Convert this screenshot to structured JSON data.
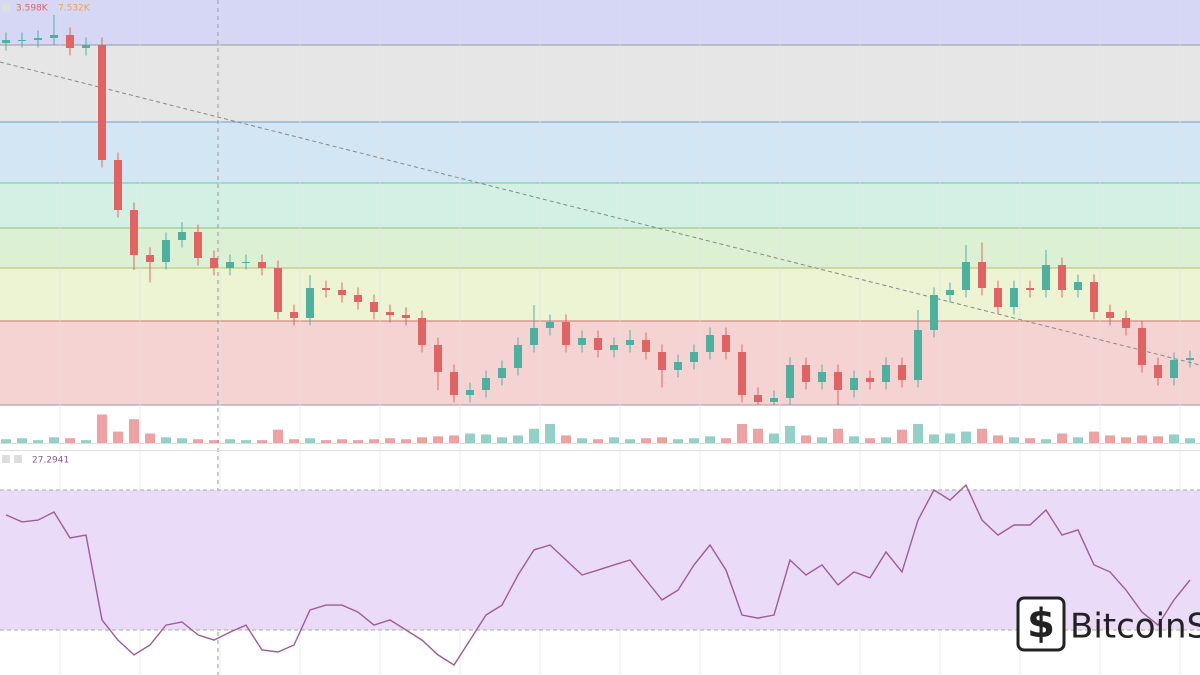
{
  "chart_data": {
    "type": "candlestick",
    "header_values": [
      "3.598K",
      "7.532K"
    ],
    "rsi_header": "27.2941",
    "watermark": "BitcoinS",
    "up_color": "#4fb0a0",
    "down_color": "#e06464",
    "ylim": [
      0,
      81
    ],
    "levels": [
      81,
      72,
      56.6,
      44.4,
      35.4,
      27.4,
      16.8,
      0
    ],
    "band_colors": [
      "#d6d6f5",
      "#e6e6e6",
      "#d3e6f3",
      "#d3f0e4",
      "#dcf0d4",
      "#ecf4d4",
      "#f5d3d3"
    ],
    "level_colors": [
      "#8f8fd6",
      "#9a9a9a",
      "#6d9fc9",
      "#6cc2a8",
      "#8fbf7a",
      "#b0bf6a",
      "#d96b6b",
      "#9a9a9a"
    ],
    "trendline": [
      68.6,
      8
    ],
    "open": [
      72.4,
      73,
      73,
      73.4,
      74,
      71.4,
      72,
      49,
      39,
      30,
      28.6,
      33,
      34.6,
      29.4,
      27.4,
      28.6,
      28.6,
      27.4,
      18.6,
      17.4,
      23.4,
      23,
      22,
      20.6,
      18.6,
      18,
      17.4,
      12,
      6.6,
      2,
      3,
      5.4,
      7.4,
      12,
      15.4,
      16.6,
      12,
      13.4,
      11,
      12,
      13,
      10.6,
      7,
      8.6,
      10.6,
      14,
      10.6,
      2,
      0.6,
      1.4,
      8,
      4.6,
      6.6,
      3,
      5.4,
      4.6,
      8,
      5,
      15,
      22,
      23,
      28.6,
      23.4,
      19.6,
      23.4,
      23,
      28,
      23,
      24.6,
      18.6,
      17.4,
      15.4,
      8,
      5.4,
      9
    ],
    "high": [
      74.5,
      74.5,
      74.9,
      78,
      75.5,
      73.5,
      73.5,
      50.5,
      40.5,
      31.5,
      34.5,
      36.6,
      36.1,
      30.9,
      30.1,
      30.1,
      30.1,
      28.9,
      20.1,
      26,
      24.9,
      24.5,
      23.5,
      22.1,
      20.1,
      19.5,
      18.9,
      13.5,
      8.1,
      4.5,
      6.9,
      8.9,
      13.5,
      20,
      18.1,
      18.1,
      14.9,
      14.9,
      13.5,
      15,
      14.5,
      12.1,
      10.1,
      12.1,
      15.5,
      15.5,
      12.1,
      3.5,
      2.9,
      9.5,
      9.5,
      8.1,
      8.1,
      6.9,
      6.9,
      9.5,
      9.5,
      19,
      23.5,
      24.5,
      32,
      32.5,
      24.9,
      24.9,
      24.9,
      31,
      29.5,
      26.1,
      26.1,
      20.1,
      18.9,
      16.9,
      9.5,
      10.5,
      10.9
    ],
    "low": [
      70.9,
      71.5,
      71.5,
      71.9,
      69.9,
      69.9,
      47.5,
      37.5,
      27,
      24.5,
      27.1,
      31.5,
      27.9,
      25.9,
      25.9,
      27.1,
      25.9,
      17.1,
      15.9,
      15.9,
      21.5,
      20.5,
      19.1,
      17.1,
      16.5,
      15.9,
      10.5,
      3,
      0.5,
      0.5,
      1.5,
      3.9,
      5.9,
      10.5,
      13.9,
      10.5,
      10.5,
      9.5,
      9.5,
      10.5,
      9.1,
      3.5,
      5.5,
      7.1,
      9.1,
      9.1,
      0.5,
      0,
      0,
      0,
      3.1,
      3.1,
      0,
      1.5,
      3.1,
      3.1,
      3.5,
      3.5,
      13.5,
      20.5,
      21.5,
      21.9,
      18.1,
      18.1,
      21.5,
      21.5,
      21.5,
      21.5,
      17.1,
      15.9,
      13.9,
      6.5,
      3.9,
      3.9,
      7.5
    ],
    "close": [
      73,
      73,
      73.4,
      74,
      71.4,
      72,
      49,
      39,
      30,
      28.6,
      33,
      34.6,
      29.4,
      27.4,
      28.6,
      28.6,
      27.4,
      18.6,
      17.4,
      23.4,
      23,
      22,
      20.6,
      18.6,
      18,
      17.4,
      12,
      6.6,
      2,
      3,
      5.4,
      7.4,
      12,
      15.4,
      16.6,
      12,
      13.4,
      11,
      12,
      13,
      10.6,
      7,
      8.6,
      10.6,
      14,
      10.6,
      2,
      0.6,
      1.4,
      8,
      4.6,
      6.6,
      3,
      5.4,
      4.6,
      8,
      5,
      15,
      22,
      23,
      28.6,
      23.4,
      19.6,
      23.4,
      23,
      28,
      23,
      24.6,
      18.6,
      17.4,
      15.4,
      8,
      5.4,
      9,
      9.4
    ],
    "volume_ylim": [
      0,
      40
    ],
    "volume": [
      4,
      5,
      3,
      6,
      5,
      3,
      30,
      12,
      25,
      10,
      6,
      5,
      4,
      3,
      4,
      3,
      3,
      14,
      4,
      5,
      3,
      4,
      3,
      4,
      5,
      4,
      6,
      7,
      8,
      10,
      9,
      6,
      8,
      15,
      20,
      8,
      5,
      4,
      6,
      4,
      5,
      6,
      4,
      5,
      7,
      5,
      20,
      15,
      10,
      18,
      8,
      6,
      15,
      7,
      5,
      6,
      14,
      20,
      9,
      10,
      12,
      15,
      8,
      6,
      5,
      4,
      10,
      6,
      12,
      8,
      6,
      8,
      7,
      9,
      5
    ],
    "rsi_ylim": [
      20,
      80
    ],
    "rsi_bands": [
      30,
      70
    ],
    "rsi_color": "#a05a9a",
    "rsi_band_color": "#eadcf8",
    "rsi": [
      62.9,
      60.9,
      61.4,
      63.7,
      56.3,
      57.1,
      32.9,
      27.1,
      22.9,
      25.7,
      31.4,
      32.3,
      28.6,
      27.1,
      29.4,
      31.4,
      24.3,
      23.7,
      25.7,
      35.7,
      37.1,
      37.1,
      35.1,
      31.4,
      32.9,
      30,
      27.1,
      22.9,
      20,
      27.1,
      34.3,
      37.1,
      45.7,
      52.9,
      54.3,
      50,
      45.7,
      47.1,
      48.6,
      50,
      44.3,
      38.6,
      41.4,
      48.6,
      54.3,
      47.1,
      34.3,
      33.4,
      34.3,
      50,
      45.7,
      48.6,
      42.9,
      46.6,
      44.9,
      52.3,
      46.6,
      61.4,
      70,
      67.1,
      71.4,
      61.4,
      57.1,
      60,
      60,
      64.3,
      57.1,
      58.6,
      48.6,
      46.6,
      41.4,
      35.1,
      31.4,
      38.6,
      44.3
    ]
  }
}
